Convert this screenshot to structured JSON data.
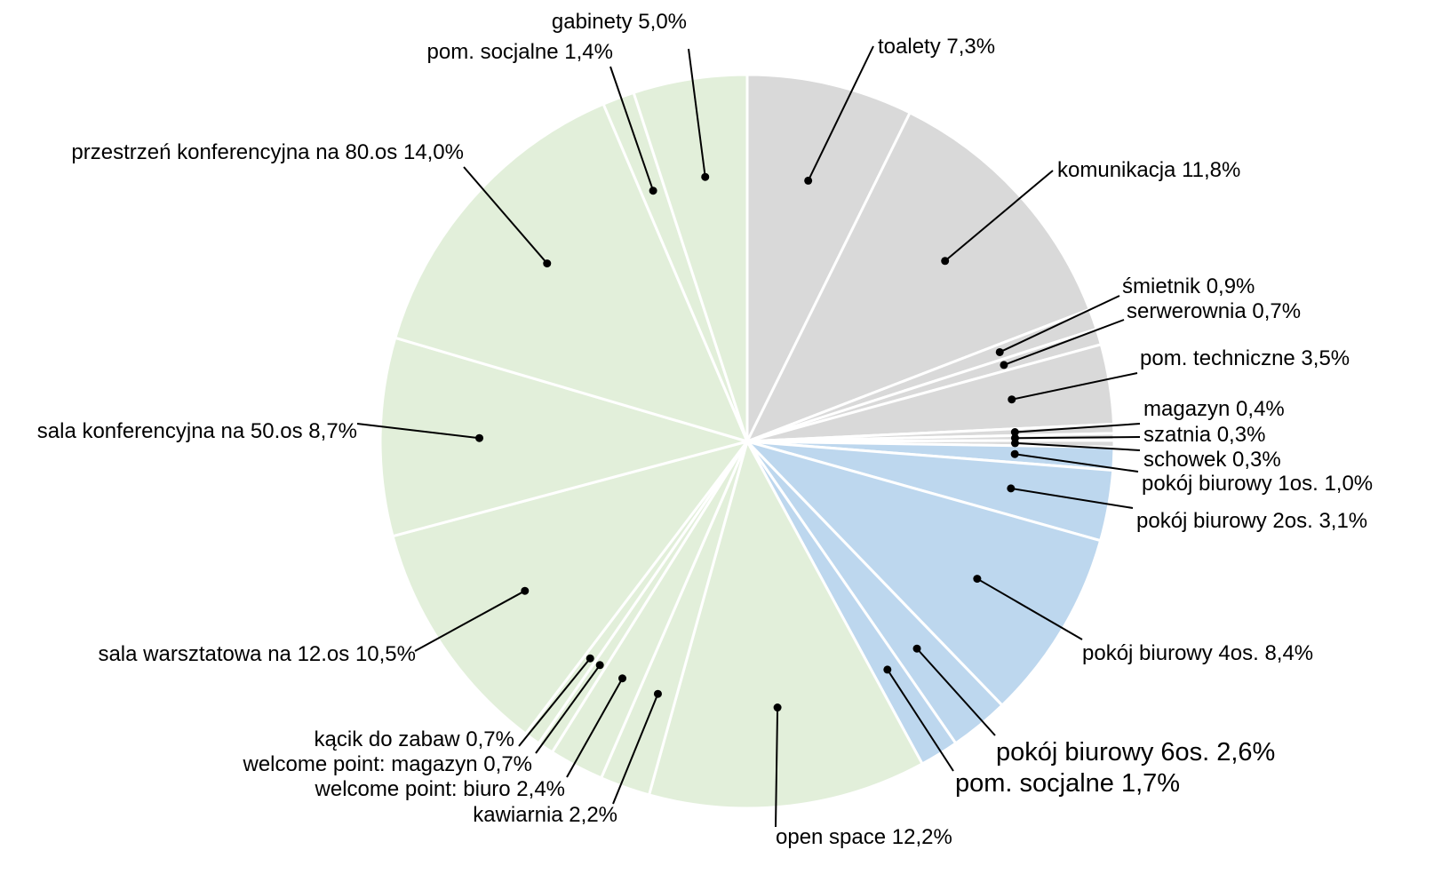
{
  "chart_data": {
    "type": "pie",
    "colors": {
      "gray": "#d9d9d9",
      "blue": "#bdd7ee",
      "green": "#e2efda"
    },
    "slices": [
      {
        "label": "toalety 7,3%",
        "value": 7.3,
        "color": "#d9d9d9"
      },
      {
        "label": "komunikacja 11,8%",
        "value": 11.8,
        "color": "#d9d9d9"
      },
      {
        "label": "śmietnik 0,9%",
        "value": 0.9,
        "color": "#d9d9d9"
      },
      {
        "label": "serwerownia 0,7%",
        "value": 0.7,
        "color": "#d9d9d9"
      },
      {
        "label": "pom. techniczne 3,5%",
        "value": 3.5,
        "color": "#d9d9d9"
      },
      {
        "label": "magazyn 0,4%",
        "value": 0.4,
        "color": "#d9d9d9"
      },
      {
        "label": "szatnia 0,3%",
        "value": 0.3,
        "color": "#d9d9d9"
      },
      {
        "label": "schowek 0,3%",
        "value": 0.3,
        "color": "#d9d9d9"
      },
      {
        "label": "pokój biurowy 1os. 1,0%",
        "value": 1.0,
        "color": "#bdd7ee"
      },
      {
        "label": "pokój biurowy 2os. 3,1%",
        "value": 3.1,
        "color": "#bdd7ee"
      },
      {
        "label": "pokój biurowy 4os. 8,4%",
        "value": 8.4,
        "color": "#bdd7ee"
      },
      {
        "label": "pokój biurowy 6os. 2,6%",
        "value": 2.6,
        "color": "#bdd7ee"
      },
      {
        "label": "pom. socjalne 1,7%",
        "value": 1.7,
        "color": "#bdd7ee"
      },
      {
        "label": "open space 12,2%",
        "value": 12.2,
        "color": "#e2efda"
      },
      {
        "label": "kawiarnia 2,2%",
        "value": 2.2,
        "color": "#e2efda"
      },
      {
        "label": "welcome point: biuro 2,4%",
        "value": 2.4,
        "color": "#e2efda"
      },
      {
        "label": "welcome point: magazyn 0,7%",
        "value": 0.7,
        "color": "#e2efda"
      },
      {
        "label": "kącik do zabaw 0,7%",
        "value": 0.7,
        "color": "#e2efda"
      },
      {
        "label": "sala warsztatowa na 12.os 10,5%",
        "value": 10.5,
        "color": "#e2efda"
      },
      {
        "label": "sala konferencyjna na 50.os 8,7%",
        "value": 8.7,
        "color": "#e2efda"
      },
      {
        "label": "przestrzeń konferencyjna na 80.os 14,0%",
        "value": 14.0,
        "color": "#e2efda"
      },
      {
        "label": "pom. socjalne 1,4%",
        "value": 1.4,
        "color": "#e2efda"
      },
      {
        "label": "gabinety 5,0%",
        "value": 5.0,
        "color": "#e2efda"
      }
    ]
  }
}
